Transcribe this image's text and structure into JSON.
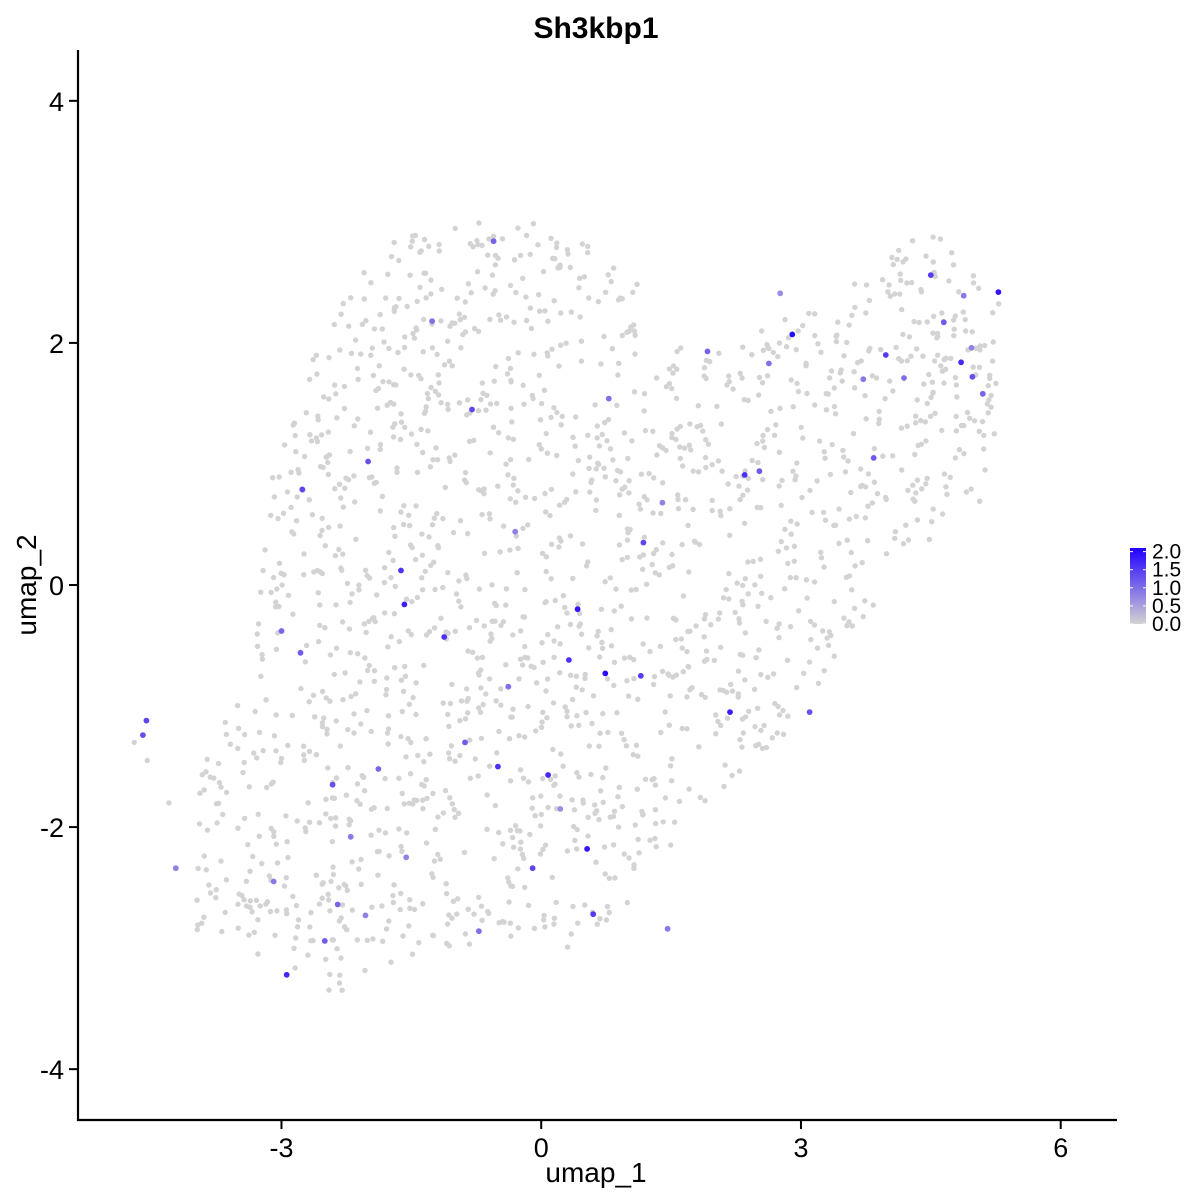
{
  "chart_data": {
    "type": "scatter",
    "title": "Sh3kbp1",
    "xlabel": "umap_1",
    "ylabel": "umap_2",
    "xlim": [
      -5.35,
      6.65
    ],
    "ylim": [
      -4.42,
      4.42
    ],
    "x_ticks": [
      -3,
      0,
      3,
      6
    ],
    "x_tick_labels": [
      "-3",
      "0",
      "3",
      "6"
    ],
    "y_ticks": [
      -4,
      -2,
      0,
      2,
      4
    ],
    "y_tick_labels": [
      "-4",
      "-2",
      "0",
      "2",
      "4"
    ],
    "grid": false,
    "legend_position": "right",
    "color_scale": {
      "low_color": "#d3d3d3",
      "high_color": "#2200ff",
      "min": 0.0,
      "max": 2.1,
      "breaks": [
        2.0,
        1.5,
        1.0,
        0.5,
        0.0
      ],
      "break_labels": [
        "2.0",
        "1.5",
        "1.0",
        "0.5",
        "0.0"
      ]
    },
    "point_count": 1800,
    "expressed_points": [
      {
        "x": 2.9,
        "y": 2.07,
        "value": 2.0
      },
      {
        "x": 5.28,
        "y": 2.42,
        "value": 1.9
      },
      {
        "x": 0.74,
        "y": -0.73,
        "value": 2.0
      },
      {
        "x": 0.42,
        "y": -0.2,
        "value": 1.9
      },
      {
        "x": 0.53,
        "y": -2.18,
        "value": 1.9
      },
      {
        "x": 2.18,
        "y": -1.05,
        "value": 1.8
      },
      {
        "x": 0.08,
        "y": -1.57,
        "value": 1.7
      },
      {
        "x": -1.62,
        "y": 0.12,
        "value": 1.6
      },
      {
        "x": -1.58,
        "y": -0.16,
        "value": 1.8
      },
      {
        "x": -2.94,
        "y": -3.22,
        "value": 1.7
      },
      {
        "x": 2.35,
        "y": 0.91,
        "value": 1.6
      },
      {
        "x": 4.85,
        "y": 1.84,
        "value": 1.7
      },
      {
        "x": -1.12,
        "y": -0.43,
        "value": 1.6
      },
      {
        "x": -0.5,
        "y": -1.5,
        "value": 1.6
      },
      {
        "x": 0.6,
        "y": -2.72,
        "value": 1.5
      },
      {
        "x": 0.32,
        "y": -0.62,
        "value": 1.6
      },
      {
        "x": 1.15,
        "y": -0.75,
        "value": 1.5
      },
      {
        "x": -4.56,
        "y": -1.12,
        "value": 1.4
      },
      {
        "x": -4.6,
        "y": -1.24,
        "value": 1.3
      },
      {
        "x": -0.8,
        "y": 1.45,
        "value": 1.4
      },
      {
        "x": -2.76,
        "y": 0.79,
        "value": 1.4
      },
      {
        "x": -2.0,
        "y": 1.02,
        "value": 1.3
      },
      {
        "x": 3.98,
        "y": 1.9,
        "value": 1.5
      },
      {
        "x": 4.5,
        "y": 2.56,
        "value": 1.5
      },
      {
        "x": 1.18,
        "y": 0.35,
        "value": 1.4
      },
      {
        "x": -0.1,
        "y": -2.34,
        "value": 1.4
      },
      {
        "x": -2.41,
        "y": -1.65,
        "value": 1.3
      },
      {
        "x": 3.1,
        "y": -1.05,
        "value": 1.3
      },
      {
        "x": 2.52,
        "y": 0.94,
        "value": 1.2
      },
      {
        "x": 4.98,
        "y": 1.72,
        "value": 1.3
      },
      {
        "x": -0.88,
        "y": -1.3,
        "value": 1.2
      },
      {
        "x": -2.5,
        "y": -2.94,
        "value": 1.2
      },
      {
        "x": -2.35,
        "y": -2.64,
        "value": 1.1
      },
      {
        "x": 3.84,
        "y": 1.05,
        "value": 1.2
      },
      {
        "x": 4.65,
        "y": 2.17,
        "value": 1.2
      },
      {
        "x": -1.88,
        "y": -1.52,
        "value": 1.1
      },
      {
        "x": -3.0,
        "y": -0.38,
        "value": 1.1
      },
      {
        "x": -2.78,
        "y": -0.56,
        "value": 1.2
      },
      {
        "x": 5.1,
        "y": 1.58,
        "value": 1.1
      },
      {
        "x": -0.55,
        "y": 2.84,
        "value": 1.1
      },
      {
        "x": 0.78,
        "y": 1.54,
        "value": 1.0
      },
      {
        "x": -1.26,
        "y": 2.18,
        "value": 1.0
      },
      {
        "x": 1.92,
        "y": 1.93,
        "value": 1.1
      },
      {
        "x": 2.63,
        "y": 1.83,
        "value": 1.0
      },
      {
        "x": 4.19,
        "y": 1.71,
        "value": 1.0
      },
      {
        "x": -0.38,
        "y": -0.84,
        "value": 1.0
      },
      {
        "x": 1.46,
        "y": -2.84,
        "value": 0.9
      },
      {
        "x": -0.72,
        "y": -2.86,
        "value": 1.0
      },
      {
        "x": -2.2,
        "y": -2.08,
        "value": 0.9
      },
      {
        "x": -1.56,
        "y": -2.25,
        "value": 0.8
      },
      {
        "x": 3.72,
        "y": 1.7,
        "value": 0.9
      },
      {
        "x": 4.88,
        "y": 2.39,
        "value": 0.9
      },
      {
        "x": -3.09,
        "y": -2.45,
        "value": 0.9
      },
      {
        "x": -2.03,
        "y": -2.73,
        "value": 0.8
      },
      {
        "x": 4.97,
        "y": 1.96,
        "value": 0.8
      },
      {
        "x": 1.4,
        "y": 0.68,
        "value": 0.8
      },
      {
        "x": -0.3,
        "y": 0.44,
        "value": 0.8
      },
      {
        "x": 0.22,
        "y": -1.85,
        "value": 0.7
      },
      {
        "x": 2.76,
        "y": 2.41,
        "value": 0.7
      },
      {
        "x": -4.22,
        "y": -2.34,
        "value": 0.8
      }
    ]
  }
}
